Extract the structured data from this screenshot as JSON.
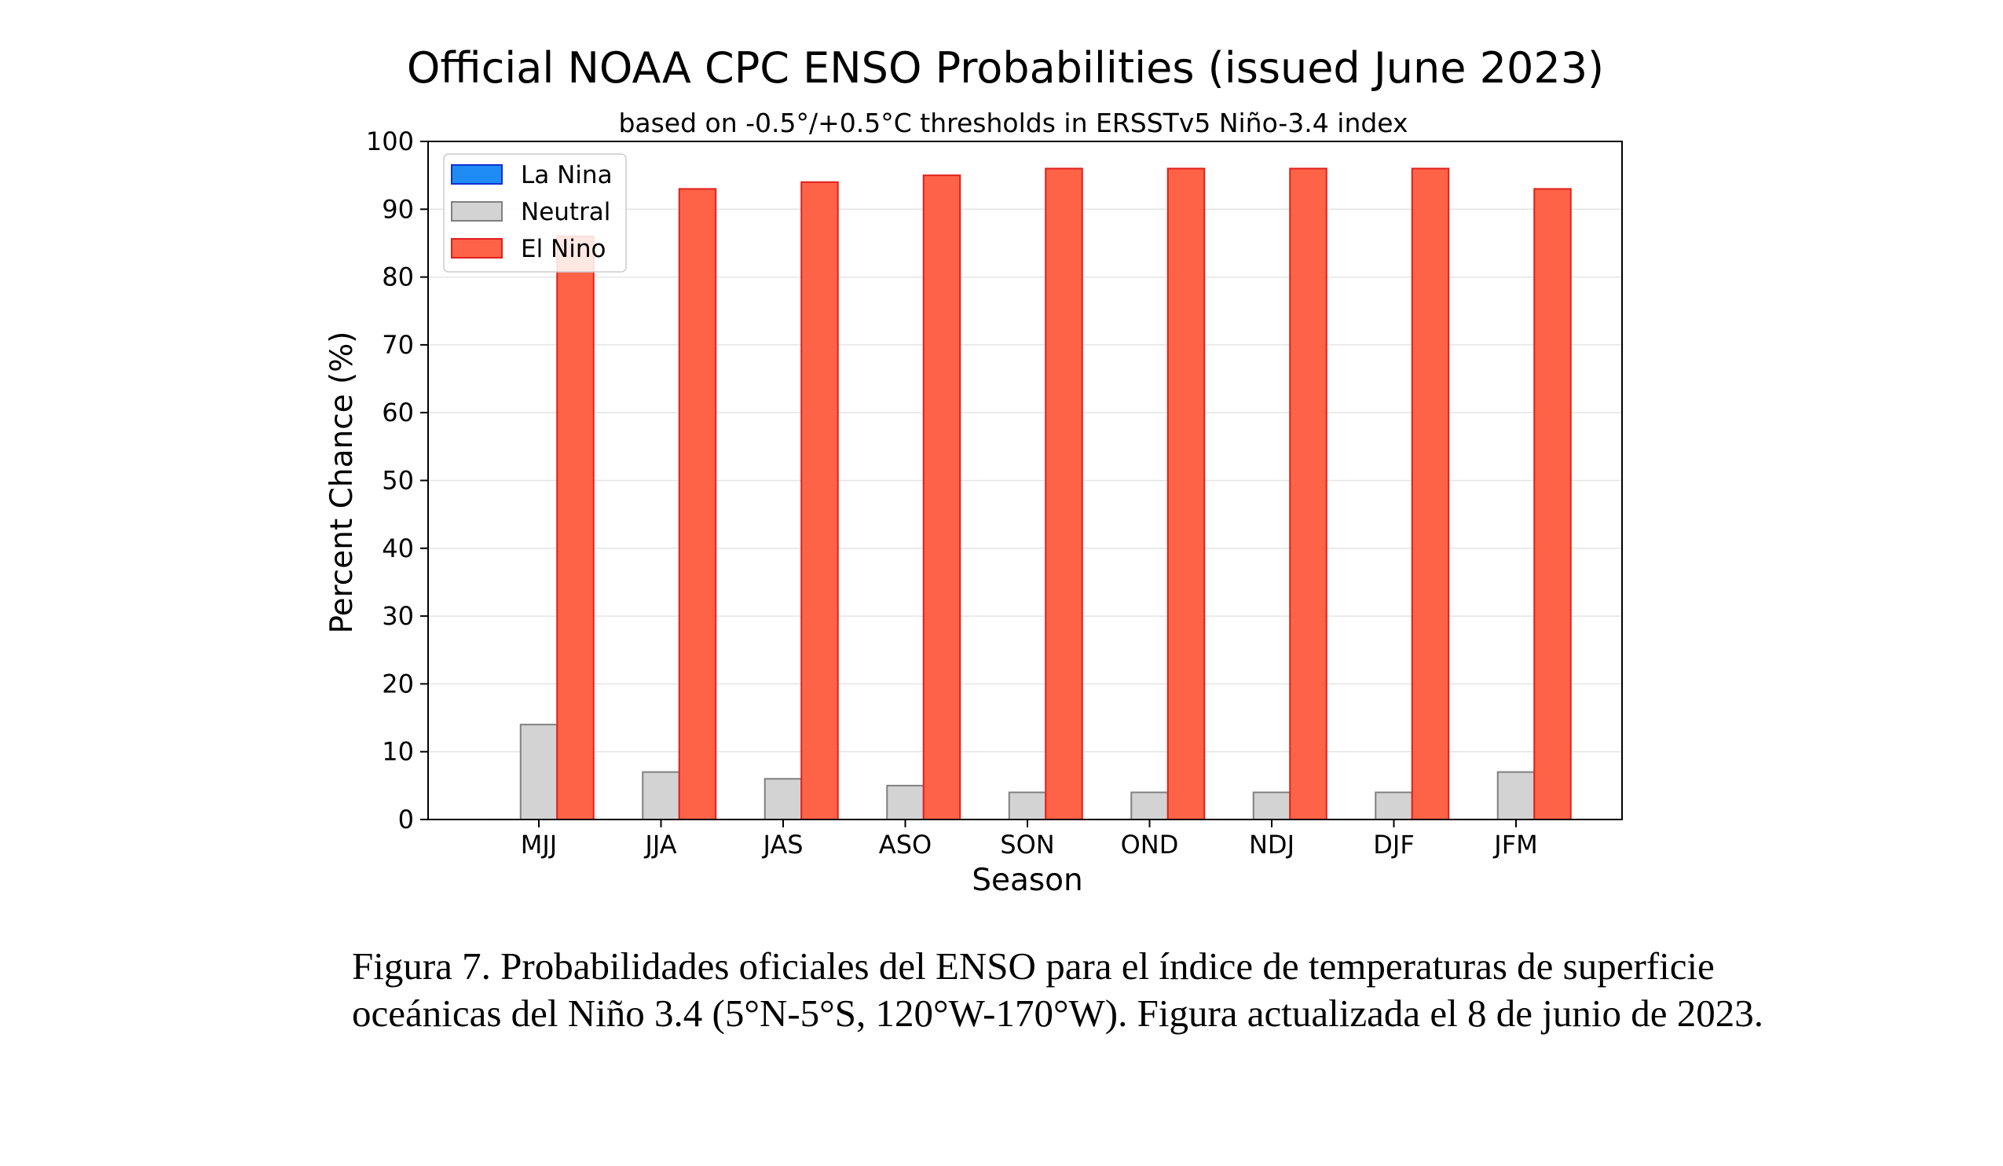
{
  "chart_data": {
    "type": "bar",
    "title": "Official NOAA CPC ENSO Probabilities (issued June 2023)",
    "subtitle": "based on -0.5°/+0.5°C thresholds in ERSSTv5 Niño-3.4 index",
    "xlabel": "Season",
    "ylabel": "Percent Chance (%)",
    "ylim": [
      0,
      100
    ],
    "yticks": [
      0,
      10,
      20,
      30,
      40,
      50,
      60,
      70,
      80,
      90,
      100
    ],
    "grid": true,
    "legend_position": "top-left",
    "categories": [
      "MJJ",
      "JJA",
      "JAS",
      "ASO",
      "SON",
      "OND",
      "NDJ",
      "DJF",
      "JFM"
    ],
    "series": [
      {
        "name": "La Nina",
        "color": "#1f8cf5",
        "edge": "#1030d0",
        "values": [
          0,
          0,
          0,
          0,
          0,
          0,
          0,
          0,
          0
        ]
      },
      {
        "name": "Neutral",
        "color": "#d3d3d3",
        "edge": "#808080",
        "values": [
          14,
          7,
          6,
          5,
          4,
          4,
          4,
          4,
          7
        ]
      },
      {
        "name": "El Nino",
        "color": "#ff6347",
        "edge": "#e0201a",
        "values": [
          86,
          93,
          94,
          95,
          96,
          96,
          96,
          96,
          93
        ]
      }
    ]
  },
  "caption": "Figura 7. Probabilidades oficiales del ENSO para el índice de temperaturas de superficie oceánicas del Niño 3.4 (5°N-5°S, 120°W-170°W). Figura actualizada el 8 de junio de 2023."
}
